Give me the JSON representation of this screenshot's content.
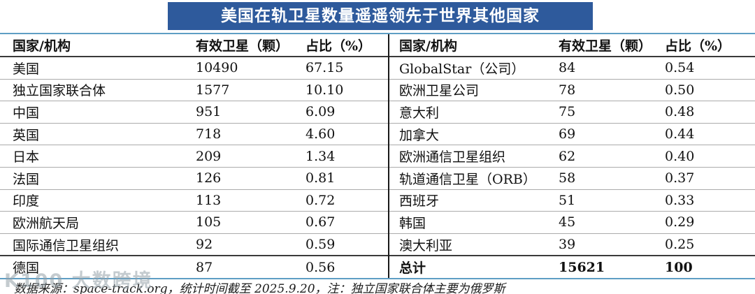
{
  "title": "美国在轨卫星数量遥遥领先于世界其他国家",
  "colors": {
    "title_bar": "#2e5a9c",
    "title_text": "#ffffff",
    "outer_border_blue": "#5e9ec4",
    "header_rule": "#3a3a3a",
    "row_divider": "#ababab",
    "column_divider": "#1a1a1a",
    "text": "#111111"
  },
  "table": {
    "headers": {
      "country": "国家/机构",
      "satellites": "有效卫星（颗）",
      "share": "占比（%）"
    },
    "left_rows": [
      [
        "美国",
        "10490",
        "67.15"
      ],
      [
        "独立国家联合体",
        "1577",
        "10.10"
      ],
      [
        "中国",
        "951",
        "6.09"
      ],
      [
        "英国",
        "718",
        "4.60"
      ],
      [
        "日本",
        "209",
        "1.34"
      ],
      [
        "法国",
        "126",
        "0.81"
      ],
      [
        "印度",
        "113",
        "0.72"
      ],
      [
        "欧洲航天局",
        "105",
        "0.67"
      ],
      [
        "国际通信卫星组织",
        "92",
        "0.59"
      ],
      [
        "德国",
        "87",
        "0.56"
      ]
    ],
    "right_rows": [
      [
        "GlobalStar（公司）",
        "84",
        "0.54"
      ],
      [
        "欧洲卫星公司",
        "78",
        "0.50"
      ],
      [
        "意大利",
        "75",
        "0.48"
      ],
      [
        "加拿大",
        "69",
        "0.44"
      ],
      [
        "欧洲通信卫星组织",
        "62",
        "0.40"
      ],
      [
        "轨道通信卫星（ORB）",
        "58",
        "0.37"
      ],
      [
        "西班牙",
        "51",
        "0.33"
      ],
      [
        "韩国",
        "45",
        "0.29"
      ],
      [
        "澳大利亚",
        "39",
        "0.25"
      ]
    ],
    "total_row": {
      "label": "总计",
      "satellites": "15621",
      "share": "100"
    }
  },
  "footer": "数据来源：space-track.org，统计时间截至 2025.9.20，注：独立国家联合体主要为俄罗斯",
  "watermark": "K100 大数跨境",
  "chart_data": {
    "type": "table",
    "title": "美国在轨卫星数量遥遥领先于世界其他国家",
    "columns": [
      "国家/机构",
      "有效卫星（颗）",
      "占比（%）"
    ],
    "rows": [
      [
        "美国",
        10490,
        67.15
      ],
      [
        "独立国家联合体",
        1577,
        10.1
      ],
      [
        "中国",
        951,
        6.09
      ],
      [
        "英国",
        718,
        4.6
      ],
      [
        "日本",
        209,
        1.34
      ],
      [
        "法国",
        126,
        0.81
      ],
      [
        "印度",
        113,
        0.72
      ],
      [
        "欧洲航天局",
        105,
        0.67
      ],
      [
        "国际通信卫星组织",
        92,
        0.59
      ],
      [
        "德国",
        87,
        0.56
      ],
      [
        "GlobalStar（公司）",
        84,
        0.54
      ],
      [
        "欧洲卫星公司",
        78,
        0.5
      ],
      [
        "意大利",
        75,
        0.48
      ],
      [
        "加拿大",
        69,
        0.44
      ],
      [
        "欧洲通信卫星组织",
        62,
        0.4
      ],
      [
        "轨道通信卫星（ORB）",
        58,
        0.37
      ],
      [
        "西班牙",
        51,
        0.33
      ],
      [
        "韩国",
        45,
        0.29
      ],
      [
        "澳大利亚",
        39,
        0.25
      ]
    ],
    "total": [
      "总计",
      15621,
      100
    ],
    "source_note": "数据来源：space-track.org，统计时间截至 2025.9.20，注：独立国家联合体主要为俄罗斯"
  }
}
